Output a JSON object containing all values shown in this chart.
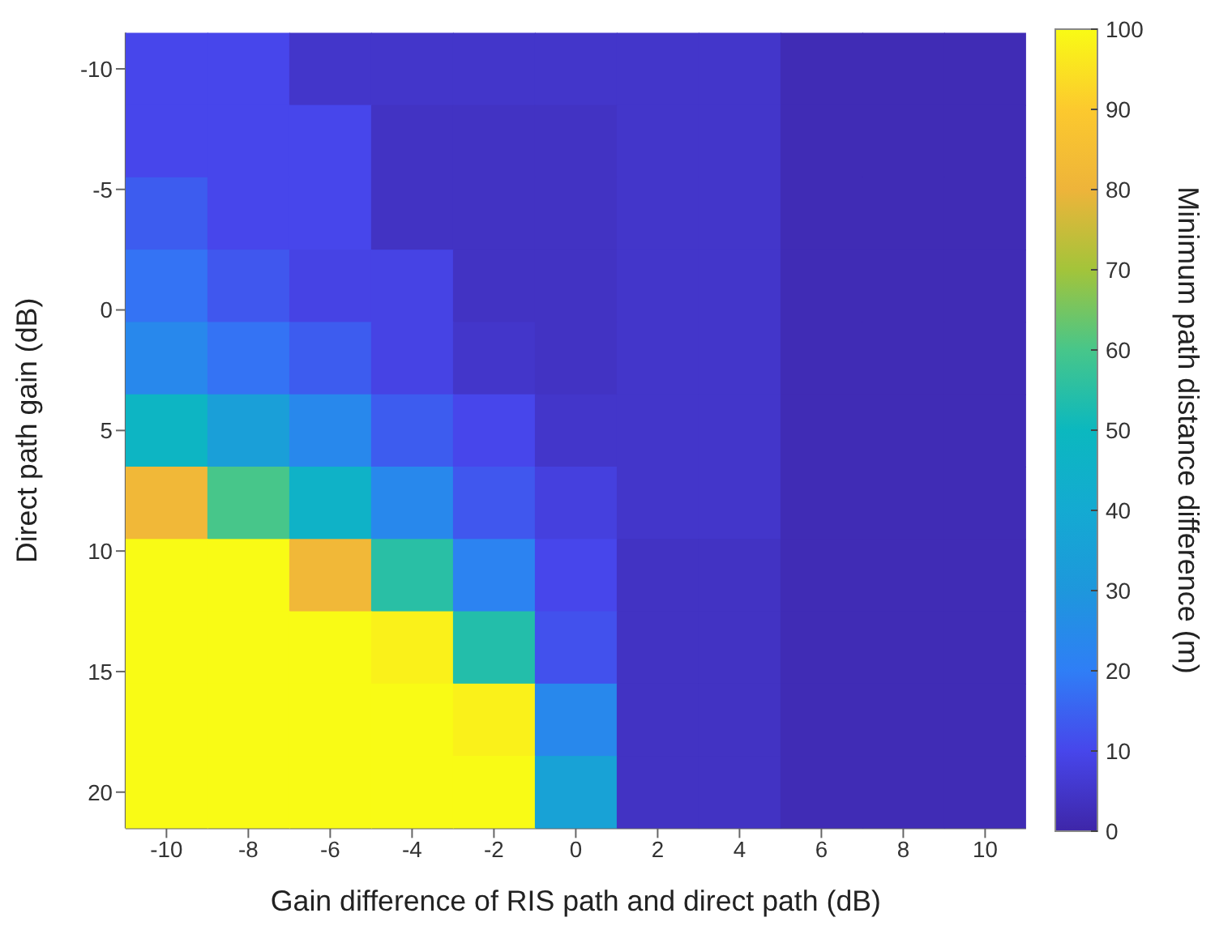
{
  "chart_data": {
    "type": "heatmap",
    "xlabel": "Gain difference of RIS path and direct path (dB)",
    "ylabel": "Direct path gain (dB)",
    "clabel": "Minimum path distance difference (m)",
    "categories": [
      "-10",
      "-8",
      "-6",
      "-4",
      "-2",
      "0",
      "2",
      "4",
      "6",
      "8",
      "10"
    ],
    "ylim": [
      21.5,
      -11.5
    ],
    "yticks": [
      -10,
      -5,
      0,
      5,
      10,
      15,
      20
    ],
    "clim": [
      0,
      100
    ],
    "cticks": [
      0,
      10,
      20,
      30,
      40,
      50,
      60,
      70,
      80,
      90,
      100
    ],
    "cells": [
      [
        10,
        10,
        5,
        5,
        5,
        5,
        5,
        5,
        2,
        2,
        2
      ],
      [
        10,
        10,
        10,
        4,
        4,
        4,
        5,
        5,
        2,
        2,
        2
      ],
      [
        14,
        10,
        10,
        4,
        4,
        4,
        5,
        5,
        2,
        2,
        2
      ],
      [
        18,
        13,
        9,
        9,
        4,
        4,
        5,
        5,
        2,
        2,
        2
      ],
      [
        24,
        18,
        14,
        9,
        5,
        4,
        5,
        5,
        2,
        2,
        2
      ],
      [
        48,
        34,
        24,
        14,
        10,
        5,
        5,
        5,
        2,
        2,
        2
      ],
      [
        82,
        60,
        46,
        24,
        13,
        8,
        5,
        5,
        2,
        2,
        2
      ],
      [
        100,
        100,
        82,
        55,
        22,
        10,
        4,
        4,
        2,
        2,
        2
      ],
      [
        100,
        100,
        100,
        98,
        54,
        12,
        4,
        4,
        2,
        2,
        2
      ],
      [
        100,
        100,
        100,
        100,
        98,
        24,
        4,
        4,
        2,
        2,
        2
      ],
      [
        100,
        100,
        100,
        100,
        100,
        36,
        4,
        4,
        2,
        2,
        2
      ]
    ]
  }
}
